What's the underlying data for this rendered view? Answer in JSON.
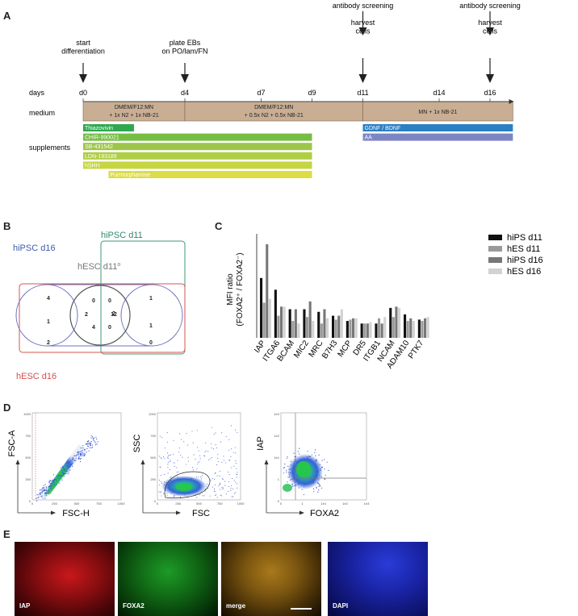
{
  "panels": {
    "a": "A",
    "b": "B",
    "c": "C",
    "d": "D",
    "e": "E"
  },
  "timeline": {
    "row_labels": {
      "days": "days",
      "medium": "medium",
      "supplements": "supplements"
    },
    "events": [
      {
        "day": 0,
        "lines": [
          "start",
          "differentiation"
        ]
      },
      {
        "day": 4,
        "lines": [
          "plate EBs",
          "on PO/lam/FN"
        ]
      },
      {
        "day": 11,
        "lines": [
          "antibody  screening",
          "",
          "harvest",
          "cells"
        ]
      },
      {
        "day": 16,
        "lines": [
          "antibody  screening",
          "",
          "harvest",
          "cells"
        ]
      }
    ],
    "day_ticks": [
      {
        "day": 0,
        "label": "d0"
      },
      {
        "day": 4,
        "label": "d4"
      },
      {
        "day": 7,
        "label": "d7"
      },
      {
        "day": 9,
        "label": "d9"
      },
      {
        "day": 11,
        "label": "d11"
      },
      {
        "day": 14,
        "label": "d14"
      },
      {
        "day": 16,
        "label": "d16"
      }
    ],
    "media": [
      {
        "start": 0,
        "end": 4,
        "lines": [
          "DMEM/F12:MN",
          "+ 1x N2 + 1x NB-21"
        ]
      },
      {
        "start": 4,
        "end": 11,
        "lines": [
          "DMEM/F12:MN",
          "+ 0.5x N2 + 0.5x NB-21"
        ]
      },
      {
        "start": 11,
        "end": 16.9,
        "lines": [
          "MN + 1x NB-21"
        ]
      }
    ],
    "supplements": [
      {
        "label": "Thiazovivin",
        "start": 0,
        "end": 2,
        "color": "#2fa84f",
        "row": 0
      },
      {
        "label": "CHIR-990021",
        "start": 0,
        "end": 9,
        "color": "#76bd44",
        "row": 1
      },
      {
        "label": "SB-431542",
        "start": 0,
        "end": 9,
        "color": "#9cc64a",
        "row": 2
      },
      {
        "label": "LDN-193189",
        "start": 0,
        "end": 9,
        "color": "#b0cd46",
        "row": 3
      },
      {
        "label": "hSHH",
        "start": 0,
        "end": 9,
        "color": "#c5d640",
        "row": 4
      },
      {
        "label": "Purmorphamine",
        "start": 1,
        "end": 9,
        "color": "#dcdc46",
        "row": 5
      },
      {
        "label": "GDNF / BDNF",
        "start": 11,
        "end": 16.9,
        "color": "#2b7fc3",
        "row": 0
      },
      {
        "label": "AA",
        "start": 11,
        "end": 16.9,
        "color": "#7d86c4",
        "row": 1
      }
    ]
  },
  "venn": {
    "sets": {
      "ipsc16": "hiPSC d16",
      "ipsc11": "hiPSC d11",
      "esc11": "hESC d11",
      "esc11_sup": "o",
      "esc16": "hESC d16"
    },
    "counts": [
      "4",
      "0",
      "0",
      "2",
      "1",
      "1",
      "1",
      "2",
      "12",
      "4",
      "0",
      "2",
      "0"
    ]
  },
  "chart_data": {
    "type": "bar",
    "ylabel": "MFI ratio",
    "ylabel2": "(FOXA2⁺ / FOXA2⁻)",
    "categories": [
      "IAP",
      "ITGA6",
      "BCAM",
      "MIC2",
      "MRC",
      "B7H3",
      "MCP",
      "DR5",
      "ITGB1",
      "NCAM",
      "ADAM10",
      "PTK7"
    ],
    "series": [
      {
        "name": "hiPS d11",
        "color": "#111111",
        "values": [
          4.6,
          3.7,
          2.2,
          2.2,
          2.0,
          1.7,
          1.3,
          1.1,
          1.1,
          2.3,
          1.8,
          1.4
        ]
      },
      {
        "name": "hES d11",
        "color": "#9a9a9a",
        "values": [
          2.7,
          1.7,
          1.3,
          1.6,
          1.1,
          1.4,
          1.4,
          1.1,
          1.5,
          1.6,
          1.3,
          1.3
        ]
      },
      {
        "name": "hiPS d16",
        "color": "#777777",
        "values": [
          7.2,
          2.4,
          2.2,
          2.8,
          2.2,
          1.7,
          1.5,
          1.1,
          1.1,
          2.4,
          1.5,
          1.5
        ]
      },
      {
        "name": "hES d16",
        "color": "#d2d2d2",
        "values": [
          3.0,
          2.4,
          1.1,
          1.3,
          1.5,
          2.2,
          1.5,
          1.2,
          1.6,
          2.3,
          1.3,
          1.6
        ]
      }
    ],
    "ylim": [
      0,
      8
    ]
  },
  "flow": {
    "plots": [
      {
        "ylabel": "FSC-A",
        "xlabel": "FSC-H",
        "yticks": [
          "1000",
          "750",
          "500",
          "250",
          "0"
        ],
        "xticks": [
          "0",
          "250",
          "500",
          "750",
          "1000"
        ]
      },
      {
        "ylabel": "SSC",
        "xlabel": "FSC",
        "yticks": [
          "1000",
          "750",
          "500",
          "250",
          "0"
        ],
        "xticks": [
          "0",
          "250",
          "500",
          "750",
          "1000"
        ]
      },
      {
        "ylabel": "IAP",
        "xlabel": "FOXA2",
        "yticks": [
          "1e3",
          "1e2",
          "1e1",
          "1",
          "0"
        ],
        "xticks": [
          "0",
          "1",
          "1e1",
          "1e2",
          "1e3"
        ]
      }
    ]
  },
  "micrographs": [
    {
      "label": "IAP"
    },
    {
      "label": "FOXA2"
    },
    {
      "label": "merge"
    },
    {
      "label": "DAPI"
    }
  ]
}
